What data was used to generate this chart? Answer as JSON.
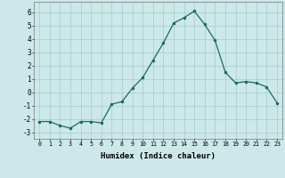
{
  "x": [
    0,
    1,
    2,
    3,
    4,
    5,
    6,
    7,
    8,
    9,
    10,
    11,
    12,
    13,
    14,
    15,
    16,
    17,
    18,
    19,
    20,
    21,
    22,
    23
  ],
  "y": [
    -2.2,
    -2.2,
    -2.5,
    -2.7,
    -2.2,
    -2.2,
    -2.3,
    -0.9,
    -0.7,
    0.3,
    1.1,
    2.4,
    3.7,
    5.2,
    5.6,
    6.1,
    5.1,
    3.9,
    1.5,
    0.7,
    0.8,
    0.7,
    0.4,
    -0.8
  ],
  "xlabel": "Humidex (Indice chaleur)",
  "ylim": [
    -3.5,
    6.8
  ],
  "xlim": [
    -0.5,
    23.5
  ],
  "yticks": [
    -3,
    -2,
    -1,
    0,
    1,
    2,
    3,
    4,
    5,
    6
  ],
  "xticks": [
    0,
    1,
    2,
    3,
    4,
    5,
    6,
    7,
    8,
    9,
    10,
    11,
    12,
    13,
    14,
    15,
    16,
    17,
    18,
    19,
    20,
    21,
    22,
    23
  ],
  "line_color": "#1a6b5a",
  "marker_color": "#1a6b5a",
  "bg_color": "#cce8e8",
  "grid_color": "#a8cccc",
  "xlabel_fontsize": 6.5,
  "xtick_fontsize": 4.8,
  "ytick_fontsize": 5.5
}
